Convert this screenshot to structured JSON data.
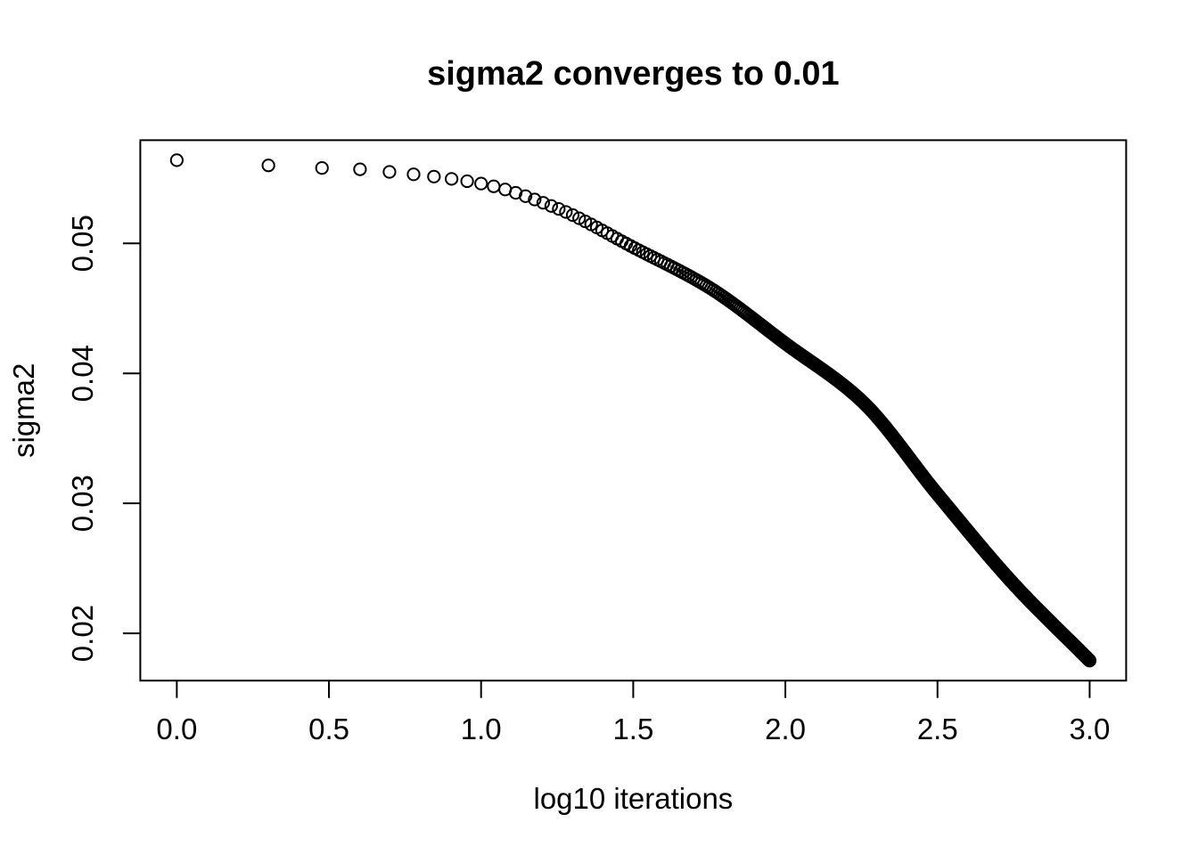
{
  "figure": {
    "background": "#ffffff",
    "foreground": "#000000"
  },
  "chart_data": {
    "type": "scatter",
    "title": "sigma2 converges to 0.01",
    "xlabel": "log10 iterations",
    "ylabel": "sigma2",
    "marker": "open-circle",
    "marker_color": "#000000",
    "marker_radius_px": 6.6,
    "marker_stroke_px": 2,
    "grid": false,
    "legend": null,
    "xlim": [
      -0.12,
      3.12
    ],
    "ylim": [
      0.01636,
      0.05794
    ],
    "x_ticks": [
      0.0,
      0.5,
      1.0,
      1.5,
      2.0,
      2.5,
      3.0
    ],
    "x_tick_labels": [
      "0.0",
      "0.5",
      "1.0",
      "1.5",
      "2.0",
      "2.5",
      "3.0"
    ],
    "y_ticks": [
      0.02,
      0.03,
      0.04,
      0.05
    ],
    "y_tick_labels": [
      "0.02",
      "0.03",
      "0.04",
      "0.05"
    ],
    "n_iterations": 1000,
    "x_rule": "x = log10(iteration), iteration = 1..1000",
    "converges_to": 0.01,
    "start_value": 0.0564,
    "end_value": 0.0179,
    "curve_anchors": {
      "log10_x": [
        0.0,
        0.301,
        0.477,
        0.602,
        0.699,
        1.0,
        1.25,
        1.5,
        1.75,
        2.0,
        2.25,
        2.5,
        2.75,
        3.0
      ],
      "sigma2": [
        0.0564,
        0.056,
        0.0558,
        0.0557,
        0.0555,
        0.0546,
        0.0527,
        0.0497,
        0.0466,
        0.0423,
        0.0379,
        0.0307,
        0.0238,
        0.0179
      ]
    }
  }
}
